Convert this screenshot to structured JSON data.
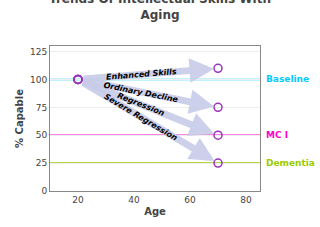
{
  "chart_data": {
    "type": "arrows",
    "title": "Trends Of Intellectual Skills With\nAging",
    "xlabel": "Age",
    "ylabel": "% Capable",
    "xlim": [
      10,
      85
    ],
    "ylim": [
      0,
      130
    ],
    "xticks": [
      20,
      40,
      60,
      80
    ],
    "yticks": [
      0,
      25,
      50,
      75,
      100,
      125
    ],
    "grid": true,
    "color": "#9933bb",
    "reference_lines": [
      {
        "name": "Baseline",
        "y": 100,
        "color": "#00ccff"
      },
      {
        "name": "MC I",
        "y": 50,
        "color": "#ff00cc"
      },
      {
        "name": "Dementia",
        "y": 25,
        "color": "#99cc00"
      }
    ],
    "series": [
      {
        "name": "Enhanced Skills",
        "x": [
          20,
          70
        ],
        "values": [
          100,
          110
        ],
        "color": "#c8cce8"
      },
      {
        "name": "Ordinary Decline",
        "x": [
          20,
          70
        ],
        "values": [
          100,
          75
        ],
        "color": "#c8cce8"
      },
      {
        "name": "Regression",
        "x": [
          20,
          70
        ],
        "values": [
          100,
          50
        ],
        "color": "#c8cce8"
      },
      {
        "name": "Severe Regression",
        "x": [
          20,
          70
        ],
        "values": [
          100,
          25
        ],
        "color": "#c8cce8"
      }
    ]
  }
}
